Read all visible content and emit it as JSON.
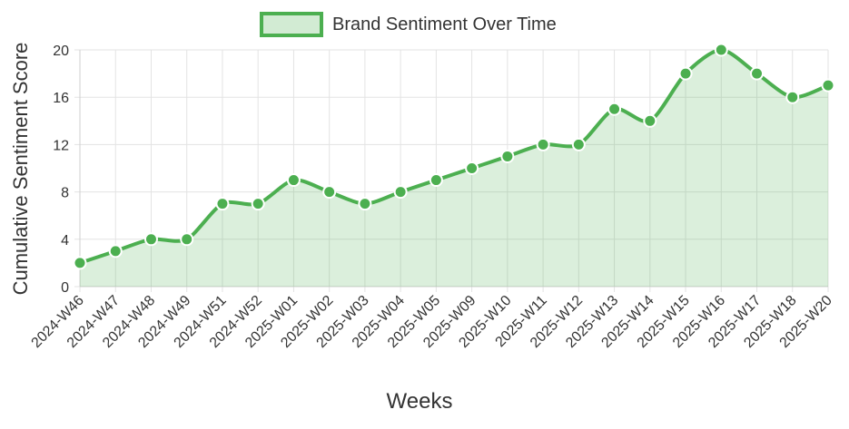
{
  "chart_data": {
    "type": "line",
    "legend_position": "top",
    "x_label": "Weeks",
    "y_label": "Cumulative Sentiment Score",
    "categories": [
      "2024-W46",
      "2024-W47",
      "2024-W48",
      "2024-W49",
      "2024-W51",
      "2024-W52",
      "2025-W01",
      "2025-W02",
      "2025-W03",
      "2025-W04",
      "2025-W05",
      "2025-W09",
      "2025-W10",
      "2025-W11",
      "2025-W12",
      "2025-W13",
      "2025-W14",
      "2025-W15",
      "2025-W16",
      "2025-W17",
      "2025-W18",
      "2025-W20"
    ],
    "series": [
      {
        "name": "Brand Sentiment Over Time",
        "color": "#4caf50",
        "fill": true,
        "values": [
          2,
          3,
          4,
          4,
          7,
          7,
          9,
          8,
          7,
          8,
          9,
          10,
          11,
          12,
          12,
          15,
          14,
          18,
          20,
          18,
          16,
          17
        ]
      }
    ],
    "ylim": [
      0,
      20
    ],
    "yticks": [
      0,
      4,
      8,
      12,
      16,
      20
    ],
    "grid": true
  }
}
